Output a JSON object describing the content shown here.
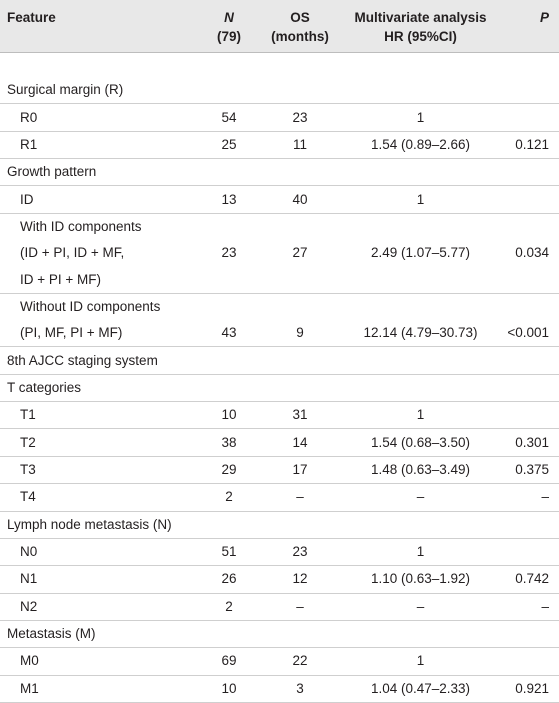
{
  "header": {
    "feature": "Feature",
    "n_line1": "N",
    "n_line2": "(79)",
    "os_line1": "OS",
    "os_line2": "(months)",
    "hr_line1": "Multivariate analysis",
    "hr_line2": "HR (95%CI)",
    "p": "P"
  },
  "rows": [
    {
      "type": "group",
      "label": "Surgical margin (R)",
      "n": "",
      "os": "",
      "hr": "",
      "p": ""
    },
    {
      "type": "sub",
      "label": "R0",
      "n": "54",
      "os": "23",
      "hr": "1",
      "p": ""
    },
    {
      "type": "sub",
      "label": "R1",
      "n": "25",
      "os": "11",
      "hr": "1.54 (0.89–2.66)",
      "p": "0.121"
    },
    {
      "type": "group",
      "label": "Growth pattern",
      "n": "",
      "os": "",
      "hr": "",
      "p": ""
    },
    {
      "type": "sub",
      "label": "ID",
      "n": "13",
      "os": "40",
      "hr": "1",
      "p": ""
    },
    {
      "type": "sub-cont",
      "label": "With ID components",
      "n": "",
      "os": "",
      "hr": "",
      "p": ""
    },
    {
      "type": "sub-cont",
      "label": "(ID + PI, ID + MF,",
      "n": "23",
      "os": "27",
      "hr": "2.49 (1.07–5.77)",
      "p": "0.034"
    },
    {
      "type": "sub",
      "label": "ID + PI + MF)",
      "n": "",
      "os": "",
      "hr": "",
      "p": ""
    },
    {
      "type": "sub-cont",
      "label": "Without ID components",
      "n": "",
      "os": "",
      "hr": "",
      "p": ""
    },
    {
      "type": "sub",
      "label": "(PI, MF, PI + MF)",
      "n": "43",
      "os": "9",
      "hr": "12.14 (4.79–30.73)",
      "p": "<0.001"
    },
    {
      "type": "group",
      "label": "8th AJCC staging system",
      "n": "",
      "os": "",
      "hr": "",
      "p": ""
    },
    {
      "type": "group",
      "label": "T categories",
      "n": "",
      "os": "",
      "hr": "",
      "p": ""
    },
    {
      "type": "sub",
      "label": "T1",
      "n": "10",
      "os": "31",
      "hr": "1",
      "p": ""
    },
    {
      "type": "sub",
      "label": "T2",
      "n": "38",
      "os": "14",
      "hr": "1.54 (0.68–3.50)",
      "p": "0.301"
    },
    {
      "type": "sub",
      "label": "T3",
      "n": "29",
      "os": "17",
      "hr": "1.48 (0.63–3.49)",
      "p": "0.375"
    },
    {
      "type": "sub",
      "label": "T4",
      "n": "2",
      "os": "–",
      "hr": "–",
      "p": "–"
    },
    {
      "type": "group",
      "label": "Lymph node metastasis (N)",
      "n": "",
      "os": "",
      "hr": "",
      "p": ""
    },
    {
      "type": "sub",
      "label": "N0",
      "n": "51",
      "os": "23",
      "hr": "1",
      "p": ""
    },
    {
      "type": "sub",
      "label": "N1",
      "n": "26",
      "os": "12",
      "hr": "1.10 (0.63–1.92)",
      "p": "0.742"
    },
    {
      "type": "sub",
      "label": "N2",
      "n": "2",
      "os": "–",
      "hr": "–",
      "p": "–"
    },
    {
      "type": "group",
      "label": "Metastasis (M)",
      "n": "",
      "os": "",
      "hr": "",
      "p": ""
    },
    {
      "type": "sub",
      "label": "M0",
      "n": "69",
      "os": "22",
      "hr": "1",
      "p": ""
    },
    {
      "type": "sub",
      "label": "M1",
      "n": "10",
      "os": "3",
      "hr": "1.04 (0.47–2.33)",
      "p": "0.921"
    }
  ]
}
